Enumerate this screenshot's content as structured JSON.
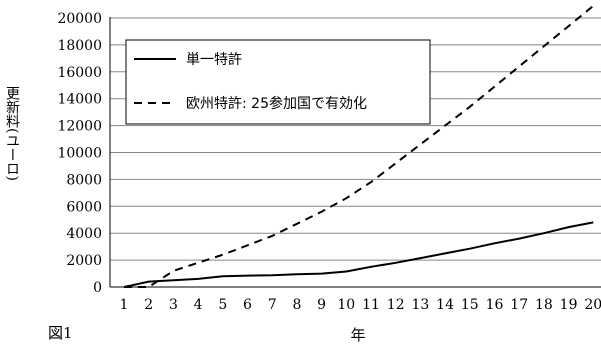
{
  "figure_label": "図1",
  "chart_data": {
    "type": "line",
    "x": [
      1,
      2,
      3,
      4,
      5,
      6,
      7,
      8,
      9,
      10,
      11,
      12,
      13,
      14,
      15,
      16,
      17,
      18,
      19,
      20
    ],
    "x_ticks": [
      "1",
      "2",
      "3",
      "4",
      "5",
      "6",
      "7",
      "8",
      "9",
      "10",
      "11",
      "12",
      "13",
      "14",
      "15",
      "16",
      "17",
      "18",
      "19",
      "20"
    ],
    "xlabel": "年",
    "ylabel": "更新料(ユーロ)",
    "ylim": [
      0,
      20000
    ],
    "y_ticks": [
      0,
      2000,
      4000,
      6000,
      8000,
      10000,
      12000,
      14000,
      16000,
      18000,
      20000
    ],
    "grid": "horizontal",
    "legend": "top-left",
    "series": [
      {
        "name": "単一特許",
        "style": "solid",
        "values": [
          0,
          400,
          500,
          600,
          800,
          850,
          880,
          950,
          1000,
          1150,
          1500,
          1800,
          2150,
          2500,
          2850,
          3250,
          3600,
          4000,
          4450,
          4800
        ]
      },
      {
        "name": "欧州特許: 25参加国で有効化",
        "style": "dashed",
        "values": [
          0,
          0,
          1200,
          1800,
          2400,
          3100,
          3800,
          4700,
          5600,
          6600,
          7800,
          9200,
          10600,
          12000,
          13400,
          14900,
          16400,
          17900,
          19400,
          20900
        ]
      }
    ]
  }
}
